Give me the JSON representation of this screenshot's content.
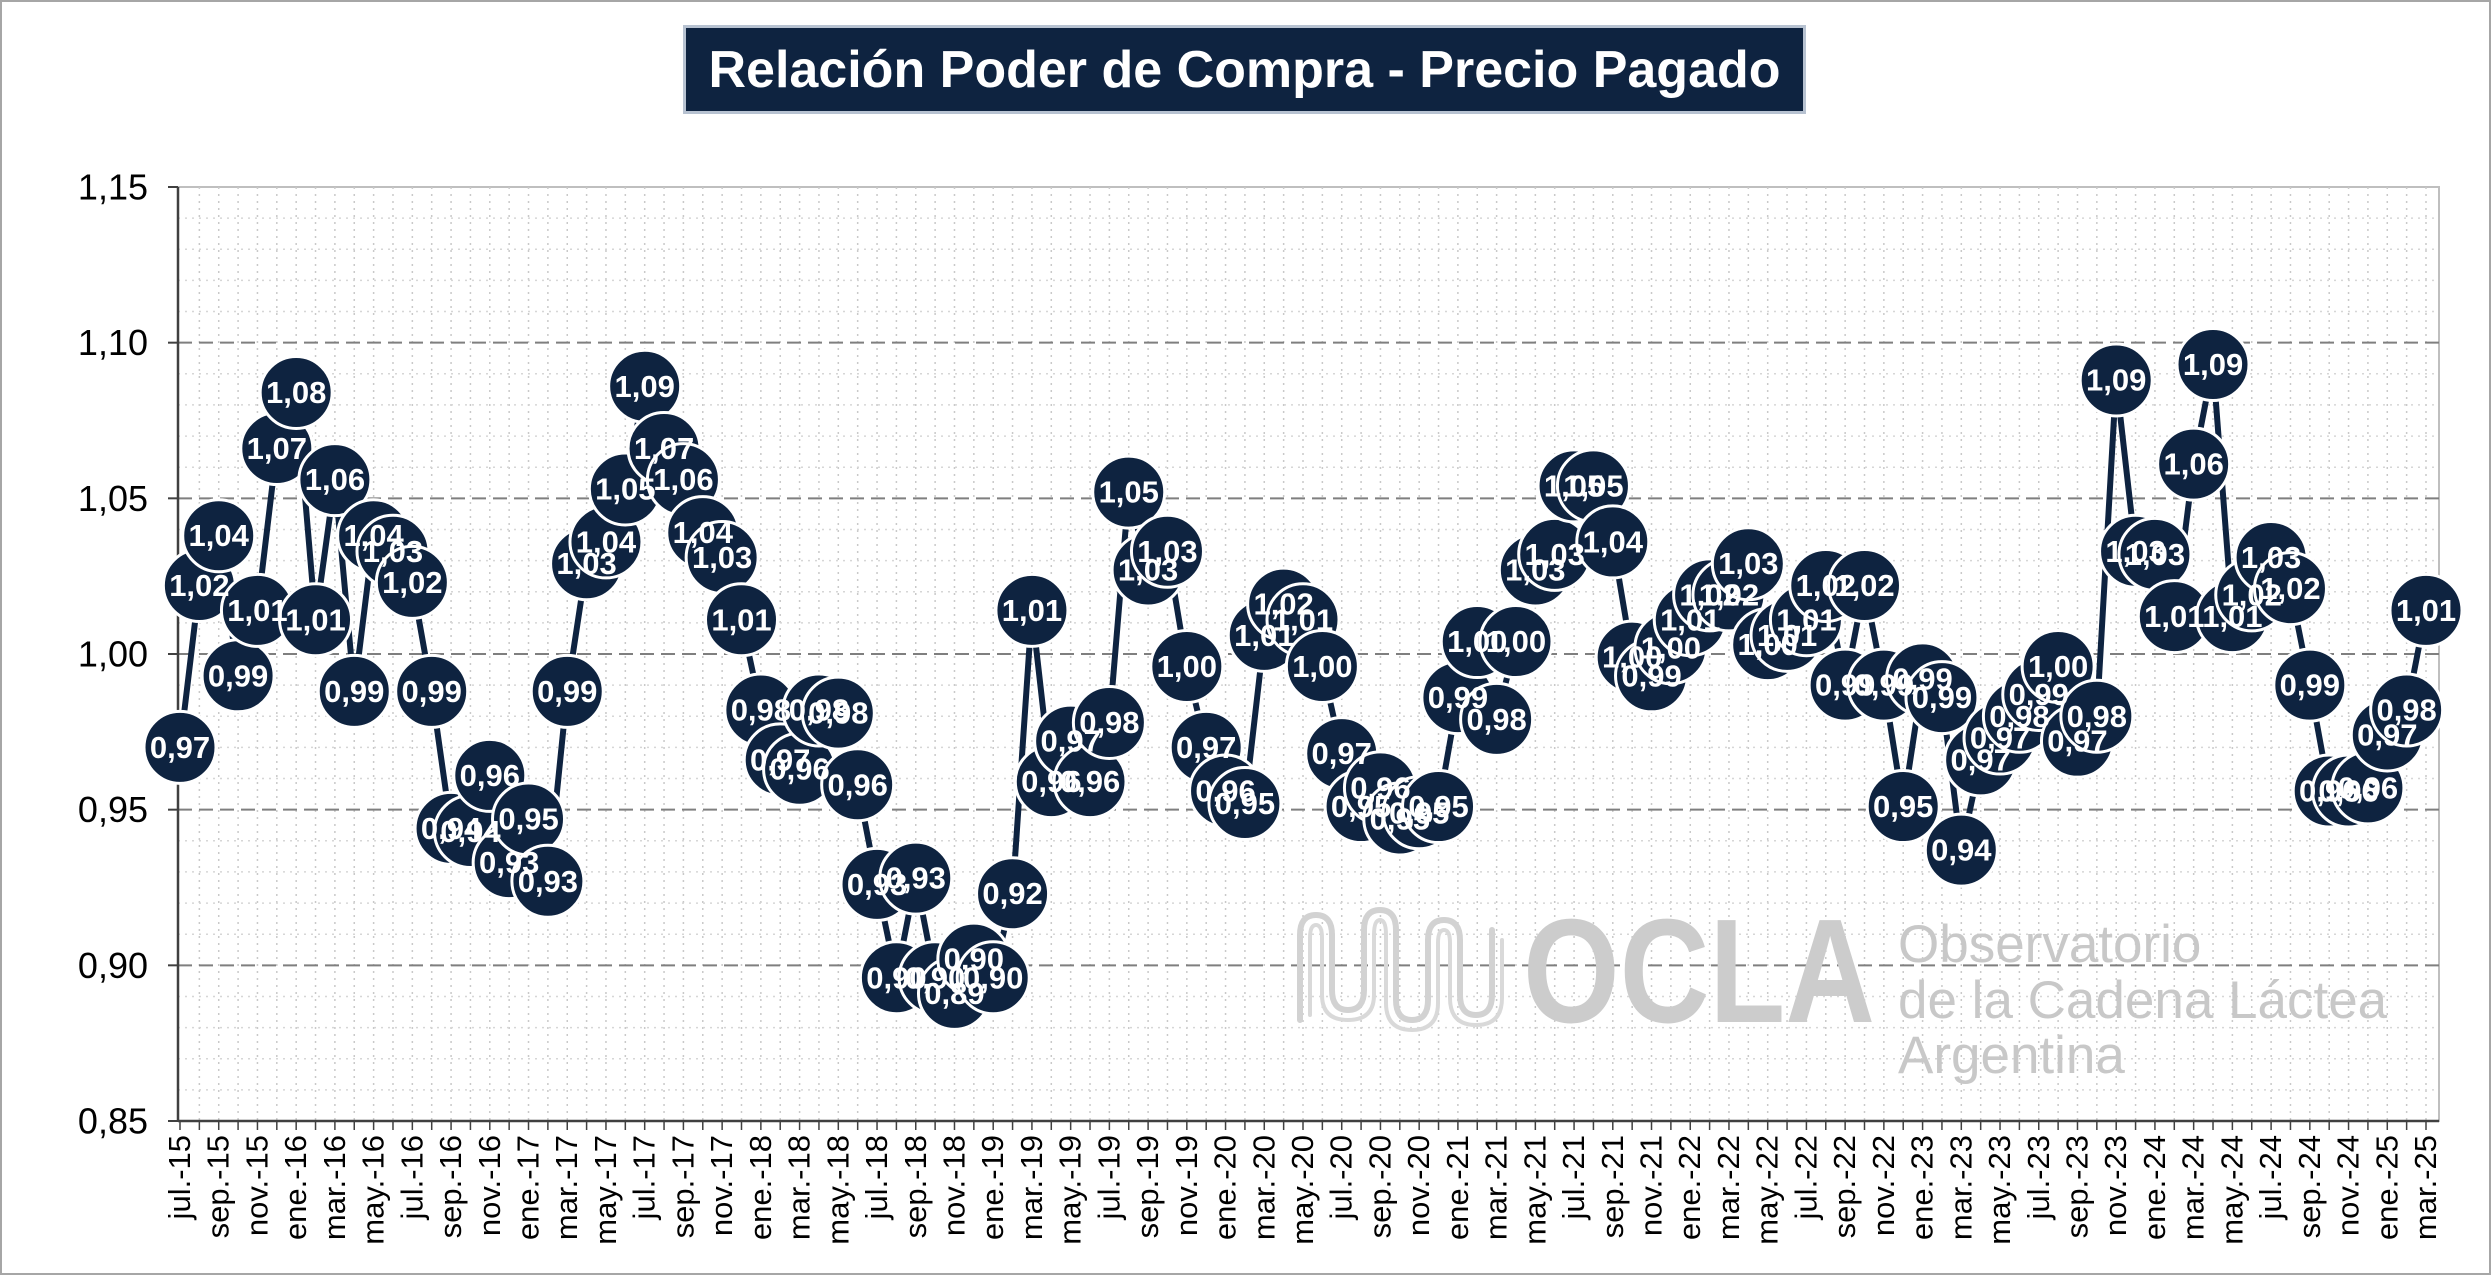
{
  "chart_data": {
    "type": "line",
    "title": "Relación Poder de Compra - Precio Pagado",
    "ylim": [
      0.85,
      1.15
    ],
    "y_ticks": [
      1.15,
      1.1,
      1.05,
      1.0,
      0.95,
      0.9,
      0.85
    ],
    "y_tick_labels": [
      "1,15",
      "1,10",
      "1,05",
      "1,00",
      "0,95",
      "0,90",
      "0,85"
    ],
    "x_tick_labels": [
      "jul.-15",
      "sep.-15",
      "nov.-15",
      "ene.-16",
      "mar.-16",
      "may.-16",
      "jul.-16",
      "sep.-16",
      "nov.-16",
      "ene.-17",
      "mar.-17",
      "may.-17",
      "jul.-17",
      "sep.-17",
      "nov.-17",
      "ene.-18",
      "mar.-18",
      "may.-18",
      "jul.-18",
      "sep.-18",
      "nov.-18",
      "ene.-19",
      "mar.-19",
      "may.-19",
      "jul.-19",
      "sep.-19",
      "nov.-19",
      "ene.-20",
      "mar.-20",
      "may.-20",
      "jul.-20",
      "sep.-20",
      "nov.-20",
      "ene.-21",
      "mar.-21",
      "may.-21",
      "jul.-21",
      "sep.-21",
      "nov.-21",
      "ene.-22",
      "mar.-22",
      "may.-22",
      "jul.-22",
      "sep.-22",
      "nov.-22",
      "ene.-23",
      "mar.-23",
      "may.-23",
      "jul.-23",
      "sep.-23",
      "nov.-23",
      "ene.-24",
      "mar.-24",
      "may.-24",
      "jul.-24",
      "sep.-24",
      "nov.-24",
      "ene.-25",
      "mar.-25"
    ],
    "series": [
      {
        "values": [
          0.97,
          1.022,
          1.038,
          0.993,
          1.014,
          1.066,
          1.084,
          1.011,
          1.056,
          0.988,
          1.038,
          1.033,
          1.023,
          0.988,
          0.944,
          0.943,
          0.961,
          0.933,
          0.947,
          0.927,
          0.988,
          1.029,
          1.036,
          1.053,
          1.086,
          1.066,
          1.056,
          1.039,
          1.031,
          1.011,
          0.982,
          0.966,
          0.963,
          0.982,
          0.981,
          0.958,
          0.926,
          0.896,
          0.928,
          0.896,
          0.891,
          0.902,
          0.896,
          0.923,
          1.014,
          0.959,
          0.972,
          0.959,
          0.978,
          1.052,
          1.027,
          1.033,
          0.996,
          0.97,
          0.956,
          0.952,
          1.006,
          1.016,
          1.011,
          0.996,
          0.968,
          0.951,
          0.957,
          0.947,
          0.949,
          0.951,
          0.986,
          1.004,
          0.979,
          1.004,
          1.027,
          1.032,
          1.054,
          1.054,
          1.036,
          0.999,
          0.993,
          1.002,
          1.011,
          1.019,
          1.019,
          1.029,
          1.003,
          1.006,
          1.011,
          1.022,
          0.99,
          1.022,
          0.99,
          0.951,
          0.992,
          0.986,
          0.937,
          0.966,
          0.973,
          0.98,
          0.987,
          0.996,
          0.972,
          0.98,
          1.088,
          1.033,
          1.032,
          1.012,
          1.061,
          1.093,
          1.012,
          1.019,
          1.031,
          1.021,
          0.99,
          0.956,
          0.956,
          0.957,
          0.974,
          0.982,
          1.014
        ]
      }
    ],
    "data_labels": "center",
    "grid": true,
    "legend": "none"
  },
  "colors": {
    "series": "#0e2340",
    "marker_outline": "#ffffff",
    "title_bg": "#0e2340",
    "title_text": "#ffffff",
    "watermark": "#cccccc"
  },
  "watermark": {
    "logo": "OCLA",
    "line1": "Observatorio",
    "line2": "de la Cadena Láctea",
    "line3": "Argentina"
  }
}
